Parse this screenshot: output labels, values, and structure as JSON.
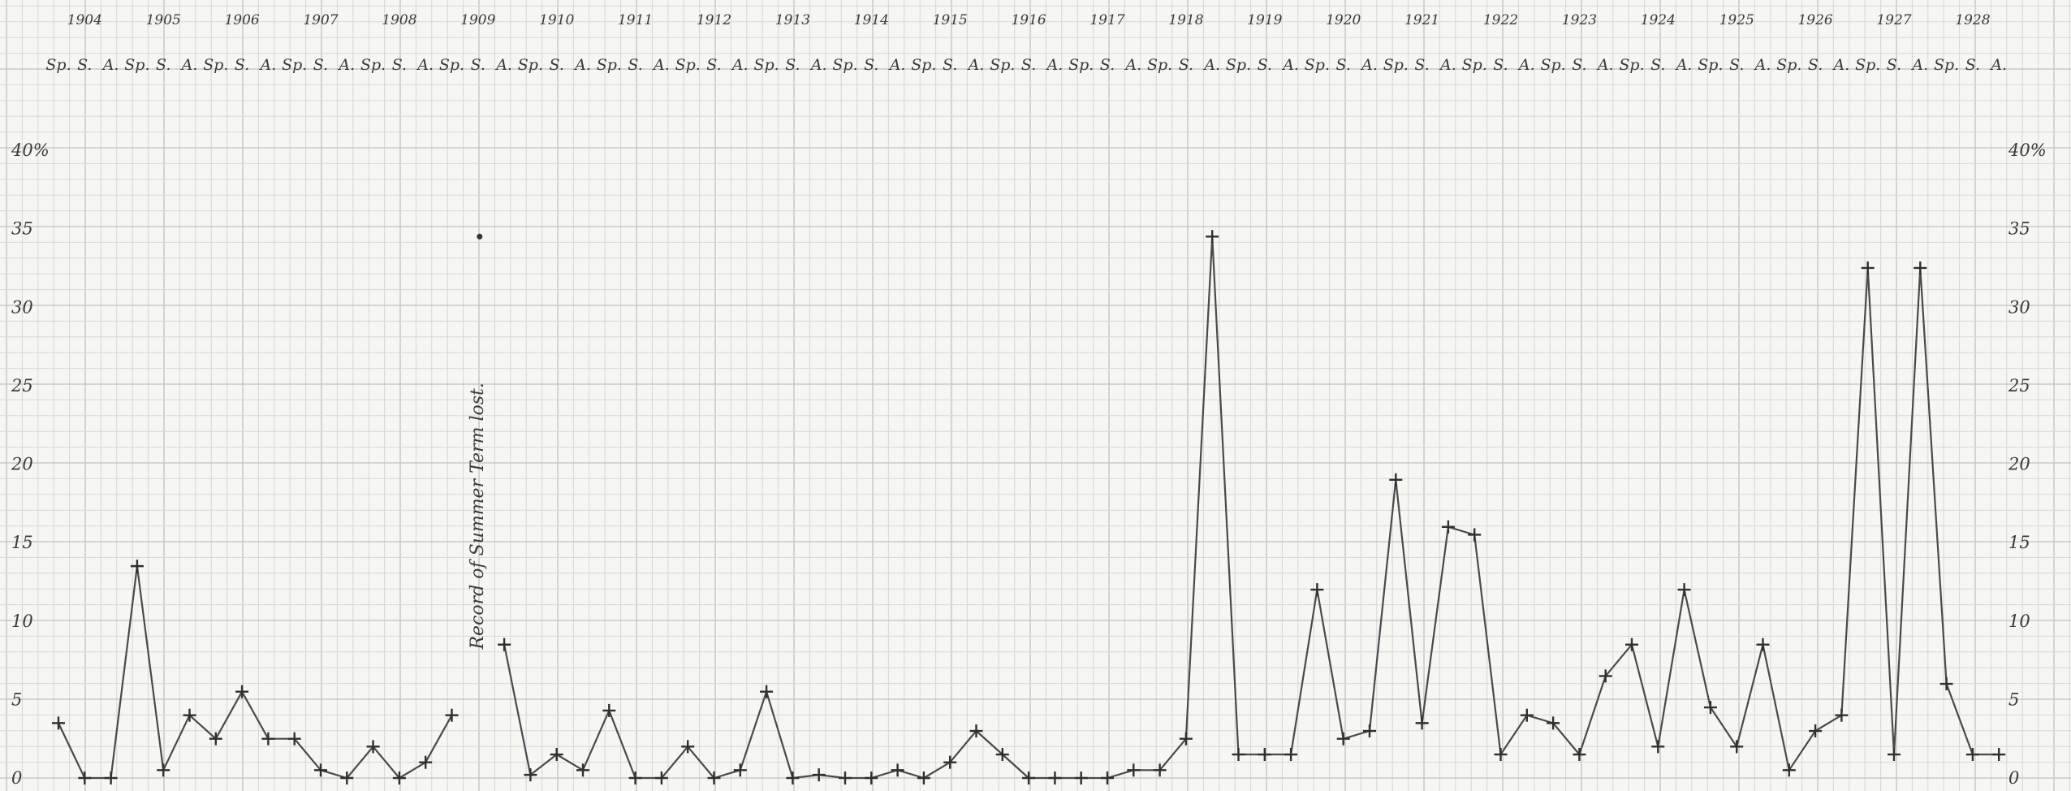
{
  "chart_data": {
    "type": "line",
    "title": "",
    "xlabel": "",
    "ylabel": "",
    "grid": true,
    "legend": "none",
    "ylim": [
      0,
      40
    ],
    "y_ticks": [
      {
        "value": 0,
        "label": "0"
      },
      {
        "value": 5,
        "label": "5"
      },
      {
        "value": 10,
        "label": "10"
      },
      {
        "value": 15,
        "label": "15"
      },
      {
        "value": 20,
        "label": "20"
      },
      {
        "value": 25,
        "label": "25"
      },
      {
        "value": 30,
        "label": "30"
      },
      {
        "value": 35,
        "label": "35"
      },
      {
        "value": 40,
        "label": "40%"
      }
    ],
    "years": [
      "1904",
      "1905",
      "1906",
      "1907",
      "1908",
      "1909",
      "1910",
      "1911",
      "1912",
      "1913",
      "1914",
      "1915",
      "1916",
      "1917",
      "1918",
      "1919",
      "1920",
      "1921",
      "1922",
      "1923",
      "1924",
      "1925",
      "1926",
      "1927",
      "1928"
    ],
    "terms": [
      "Sp.",
      "S.",
      "A."
    ],
    "annotation": {
      "text": "Record of Summer Term lost."
    },
    "series": [
      {
        "name": "",
        "values": [
          3.5,
          0,
          0,
          13.5,
          0.5,
          4,
          2.5,
          5.5,
          2.5,
          2.5,
          0.5,
          0,
          2,
          0,
          1,
          4,
          null,
          8.5,
          0.2,
          1.5,
          0.5,
          4.3,
          0,
          0,
          2,
          0,
          0.5,
          5.5,
          0,
          0.2,
          0,
          0,
          0.5,
          0,
          1,
          3,
          1.5,
          0,
          0,
          0,
          0,
          0.5,
          0.5,
          2.5,
          34.5,
          1.5,
          1.5,
          1.5,
          12,
          2.5,
          3,
          19,
          3.5,
          16,
          15.5,
          1.5,
          4,
          3.5,
          1.5,
          6.5,
          8.5,
          2,
          12,
          4.5,
          2,
          8.5,
          0.5,
          3,
          4,
          32.5,
          1.5,
          32.5,
          6,
          1.5,
          1.5
        ]
      }
    ]
  }
}
